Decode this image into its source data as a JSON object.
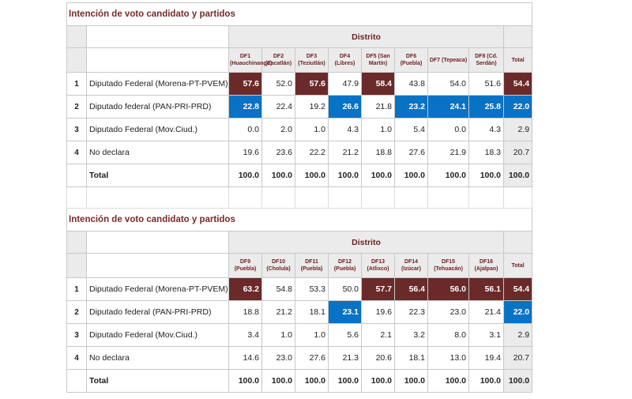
{
  "sections": [
    {
      "title": "Intención de voto candidato y partidos",
      "group_header": "Distrito",
      "columns": [
        "DF1 (Huauchinango)",
        "DF2 (Zacatlán)",
        "DF3 (Teziutlán)",
        "DF4 (Libres)",
        "DF5 (San Martín)",
        "DF6 (Puebla)",
        "DF7 (Tepeaca)",
        "DF8 (Cd. Serdán)",
        "Total"
      ],
      "rows": [
        {
          "index": "1",
          "label": "Diputado Federal (Morena-PT-PVEM)",
          "values": [
            "57.6",
            "52.0",
            "57.6",
            "47.9",
            "58.4",
            "43.8",
            "54.0",
            "51.6",
            "54.4"
          ],
          "highlight": [
            "red",
            "",
            "red",
            "",
            "red",
            "",
            "",
            "",
            "red"
          ]
        },
        {
          "index": "2",
          "label": "Diputado federal (PAN-PRI-PRD)",
          "values": [
            "22.8",
            "22.4",
            "19.2",
            "26.6",
            "21.8",
            "23.2",
            "24.1",
            "25.8",
            "22.0"
          ],
          "highlight": [
            "blue",
            "",
            "",
            "blue",
            "",
            "blue",
            "blue",
            "blue",
            "blue"
          ]
        },
        {
          "index": "3",
          "label": "Diputado Federal (Mov.Ciud.)",
          "values": [
            "0.0",
            "2.0",
            "1.0",
            "4.3",
            "1.0",
            "5.4",
            "0.0",
            "4.3",
            "2.9"
          ],
          "highlight": [
            "",
            "",
            "",
            "",
            "",
            "",
            "",
            "",
            ""
          ]
        },
        {
          "index": "4",
          "label": "No declara",
          "values": [
            "19.6",
            "23.6",
            "22.2",
            "21.2",
            "18.8",
            "27.6",
            "21.9",
            "18.3",
            "20.7"
          ],
          "highlight": [
            "",
            "",
            "",
            "",
            "",
            "",
            "",
            "",
            ""
          ]
        },
        {
          "index": "",
          "label": "Total",
          "values": [
            "100.0",
            "100.0",
            "100.0",
            "100.0",
            "100.0",
            "100.0",
            "100.0",
            "100.0",
            "100.0"
          ],
          "highlight": [
            "",
            "",
            "",
            "",
            "",
            "",
            "",
            "",
            ""
          ]
        }
      ]
    },
    {
      "title": "Intención de voto candidato y partidos",
      "group_header": "Distrito",
      "columns": [
        "DF9 (Puebla)",
        "DF10 (Cholula)",
        "DF11 (Puebla)",
        "DF12 (Puebla)",
        "DF13 (Atlixco)",
        "DF14 (Izúcar)",
        "DF15 (Tehuacán)",
        "DF16 (Ajalpan)",
        "Total"
      ],
      "rows": [
        {
          "index": "1",
          "label": "Diputado Federal (Morena-PT-PVEM)",
          "values": [
            "63.2",
            "54.8",
            "53.3",
            "50.0",
            "57.7",
            "56.4",
            "56.0",
            "56.1",
            "54.4"
          ],
          "highlight": [
            "red",
            "",
            "",
            "",
            "red",
            "red",
            "red",
            "red",
            "red"
          ]
        },
        {
          "index": "2",
          "label": "Diputado federal (PAN-PRI-PRD)",
          "values": [
            "18.8",
            "21.2",
            "18.1",
            "23.1",
            "19.6",
            "22.3",
            "23.0",
            "21.4",
            "22.0"
          ],
          "highlight": [
            "",
            "",
            "",
            "blue",
            "",
            "",
            "",
            "",
            "blue"
          ]
        },
        {
          "index": "3",
          "label": "Diputado Federal (Mov.Ciud.)",
          "values": [
            "3.4",
            "1.0",
            "1.0",
            "5.6",
            "2.1",
            "3.2",
            "8.0",
            "3.1",
            "2.9"
          ],
          "highlight": [
            "",
            "",
            "",
            "",
            "",
            "",
            "",
            "",
            ""
          ]
        },
        {
          "index": "4",
          "label": "No declara",
          "values": [
            "14.6",
            "23.0",
            "27.6",
            "21.3",
            "20.6",
            "18.1",
            "13.0",
            "19.4",
            "20.7"
          ],
          "highlight": [
            "",
            "",
            "",
            "",
            "",
            "",
            "",
            "",
            ""
          ]
        },
        {
          "index": "",
          "label": "Total",
          "values": [
            "100.0",
            "100.0",
            "100.0",
            "100.0",
            "100.0",
            "100.0",
            "100.0",
            "100.0",
            "100.0"
          ],
          "highlight": [
            "",
            "",
            "",
            "",
            "",
            "",
            "",
            "",
            ""
          ]
        }
      ]
    }
  ],
  "colors": {
    "red": "#6b2a2a",
    "blue": "#0872c4",
    "title": "#7a2a2a"
  }
}
